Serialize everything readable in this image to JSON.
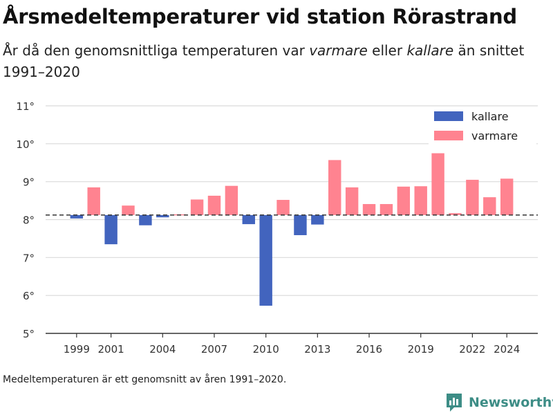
{
  "header": {
    "title": "Årsmedeltemperaturer vid station Rörastrand",
    "subtitle_1": "År då den genomsnittliga temperaturen var ",
    "subtitle_warm": "varmare",
    "subtitle_2": " eller ",
    "subtitle_cold": "kallare",
    "subtitle_3": " än snittet 1991–2020"
  },
  "footnote": "Medeltemperaturen är ett genomsnitt av åren 1991–2020.",
  "brand": {
    "name": "Newsworthy",
    "icon": "newsworthy-logo-icon",
    "color": "#3d8d86"
  },
  "chart_data": {
    "type": "bar",
    "baseline": 8.12,
    "ylim": [
      5,
      11
    ],
    "yticks": [
      {
        "value": 5,
        "label": "5°"
      },
      {
        "value": 6,
        "label": "6°"
      },
      {
        "value": 7,
        "label": "7°"
      },
      {
        "value": 8,
        "label": "8°"
      },
      {
        "value": 9,
        "label": "9°"
      },
      {
        "value": 10,
        "label": "10°"
      },
      {
        "value": 11,
        "label": "11°"
      }
    ],
    "xticks": [
      {
        "value": 1999,
        "label": "1999"
      },
      {
        "value": 2001,
        "label": "2001"
      },
      {
        "value": 2004,
        "label": "2004"
      },
      {
        "value": 2007,
        "label": "2007"
      },
      {
        "value": 2010,
        "label": "2010"
      },
      {
        "value": 2013,
        "label": "2013"
      },
      {
        "value": 2016,
        "label": "2016"
      },
      {
        "value": 2019,
        "label": "2019"
      },
      {
        "value": 2022,
        "label": "2022"
      },
      {
        "value": 2024,
        "label": "2024"
      }
    ],
    "xlim": [
      1997.2,
      2025.8
    ],
    "grid": true,
    "legend": {
      "position": "top-right",
      "items": [
        {
          "name": "kallare",
          "color": "#4264be"
        },
        {
          "name": "varmare",
          "color": "#ff8390"
        }
      ]
    },
    "colors": {
      "kallare": "#4264be",
      "varmare": "#ff8390"
    },
    "years": [
      1999,
      2000,
      2001,
      2002,
      2003,
      2004,
      2005,
      2006,
      2007,
      2008,
      2009,
      2010,
      2011,
      2012,
      2013,
      2014,
      2015,
      2016,
      2017,
      2018,
      2019,
      2020,
      2021,
      2022,
      2023,
      2024
    ],
    "values": [
      8.03,
      8.85,
      7.35,
      8.37,
      7.85,
      8.06,
      8.14,
      8.53,
      8.63,
      8.89,
      7.88,
      5.73,
      8.52,
      7.59,
      7.87,
      9.57,
      8.85,
      8.41,
      8.41,
      8.87,
      8.88,
      9.75,
      8.17,
      9.05,
      8.59,
      9.08
    ]
  }
}
